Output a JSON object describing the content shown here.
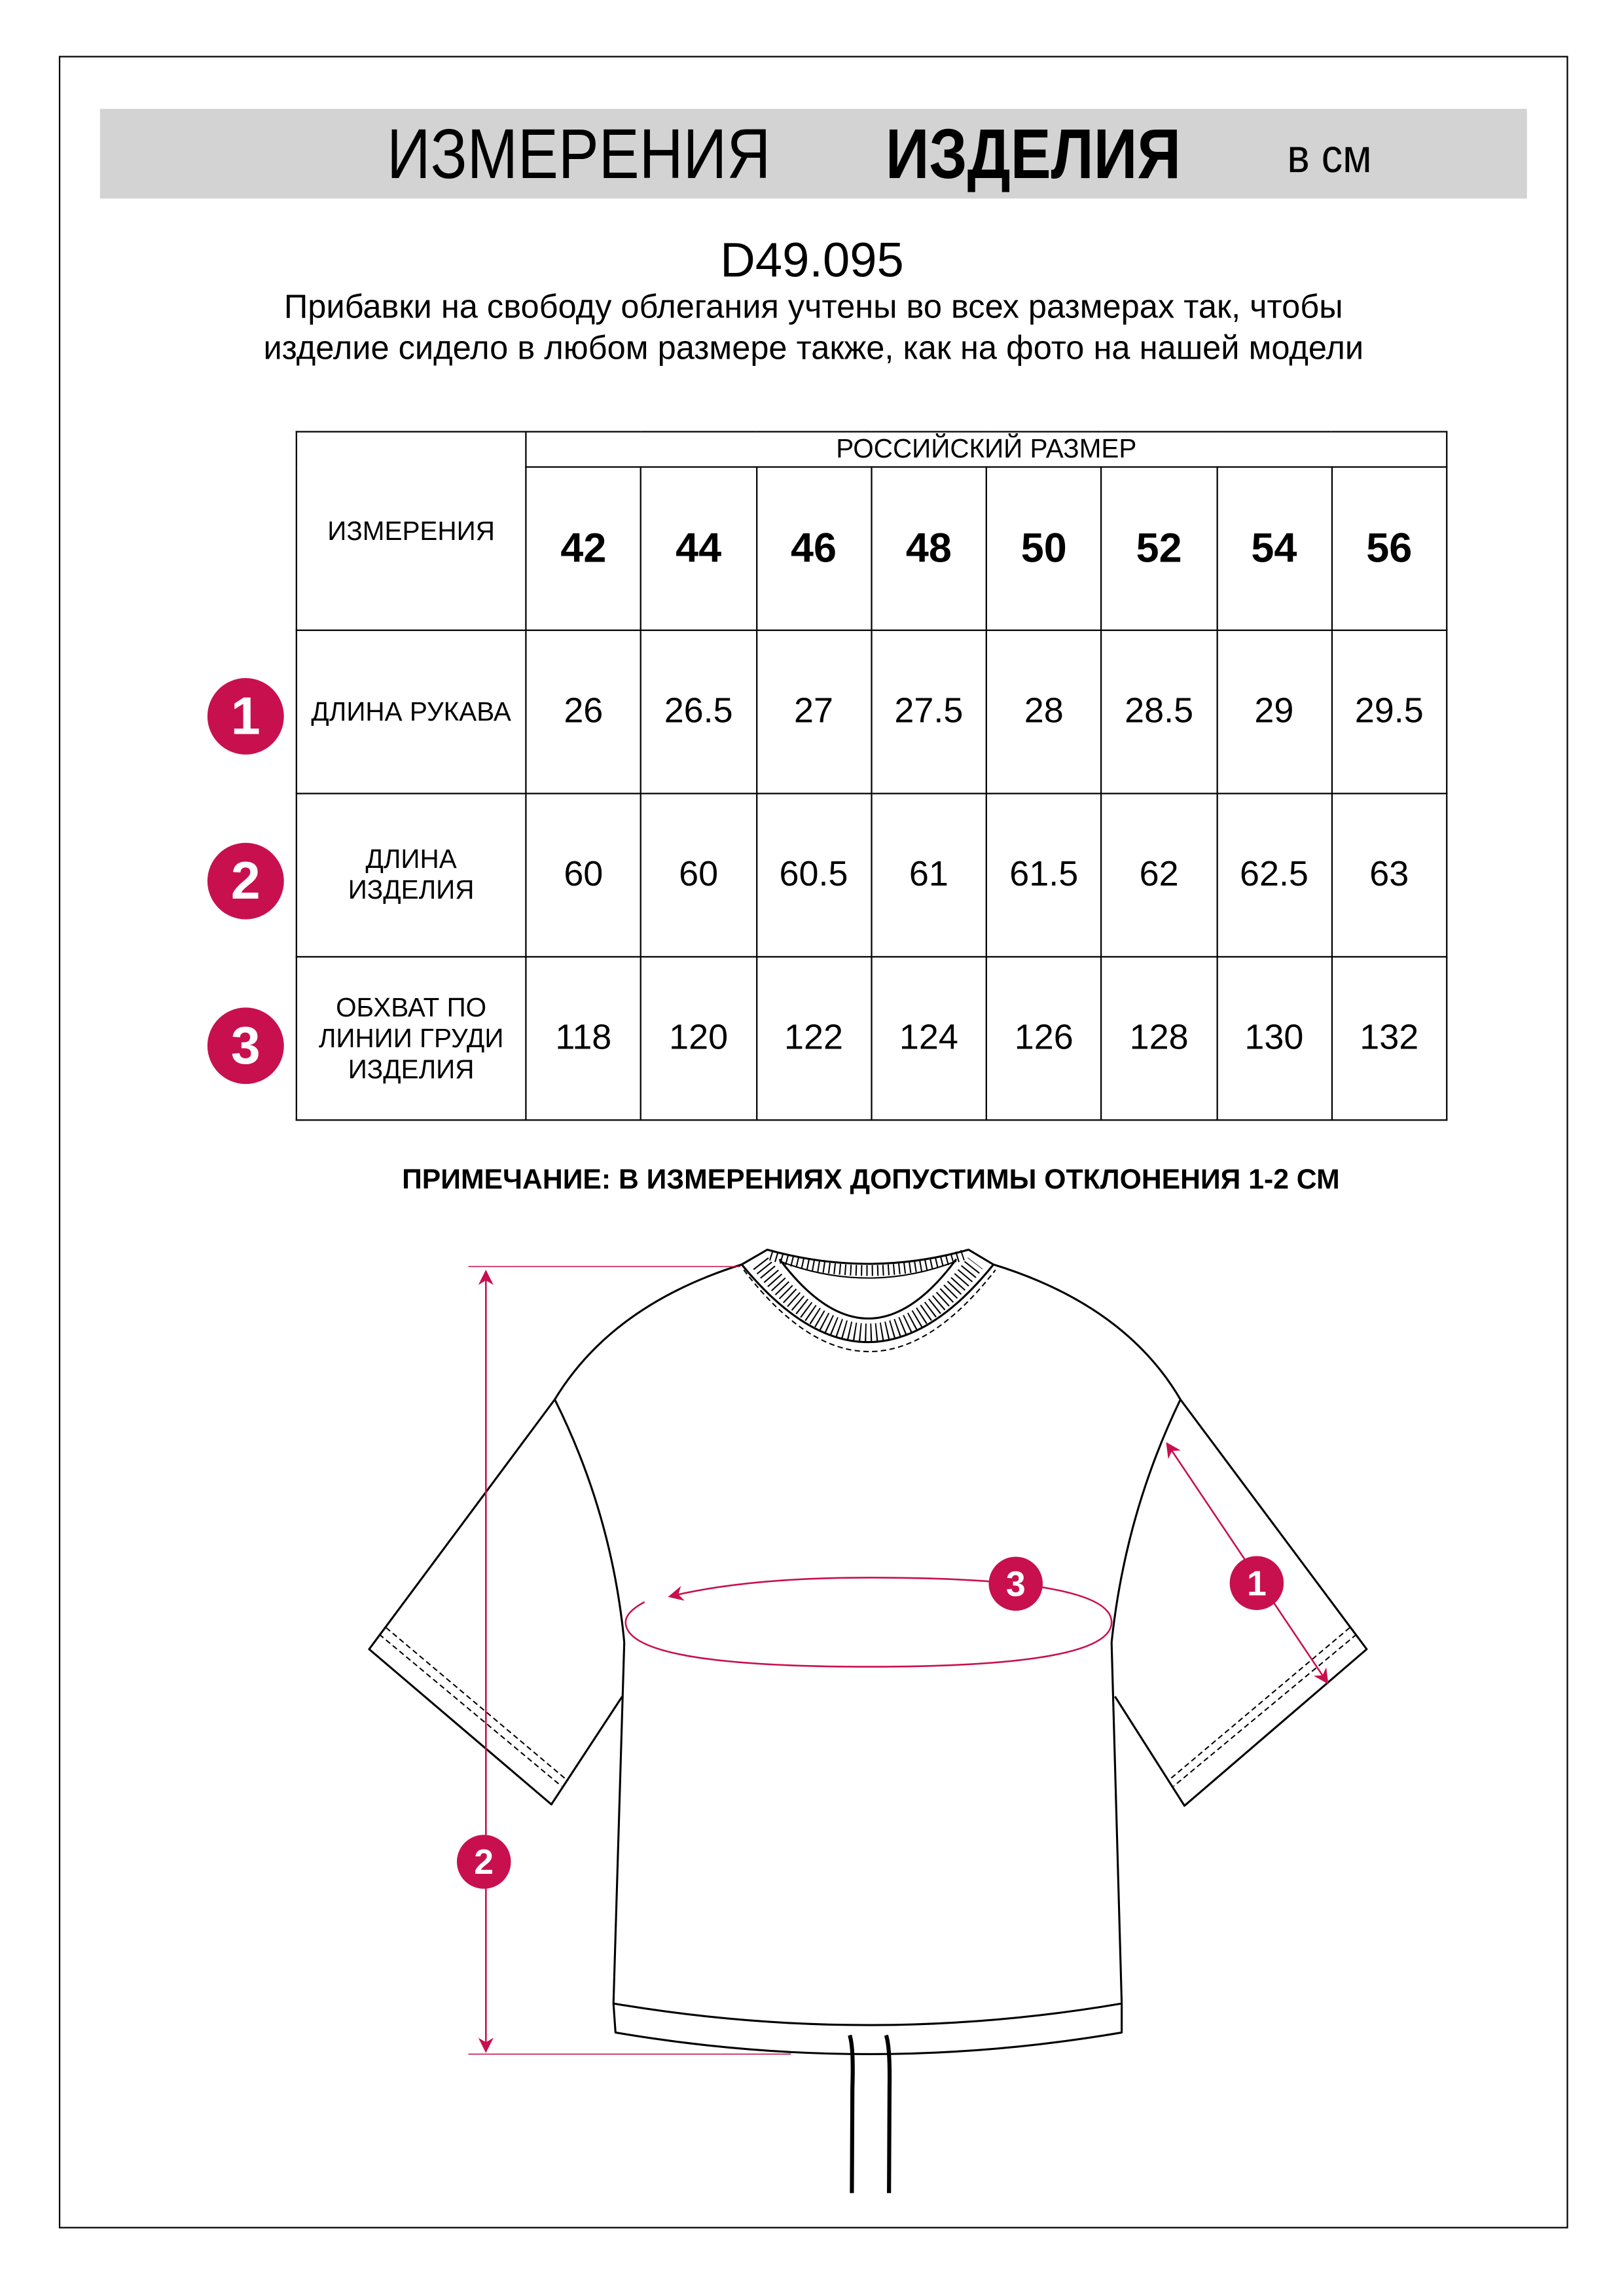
{
  "header": {
    "title_part1": "ИЗМЕРЕНИЯ",
    "title_part2": "ИЗДЕЛИЯ",
    "unit": "в см"
  },
  "product_code": "D49.095",
  "description": "Прибавки на свободу облегания учтены во всех размерах так, чтобы изделие сидело в любом размере также, как на фото на нашей модели",
  "table": {
    "corner_label": "ИЗМЕРЕНИЯ",
    "group_header": "РОССИЙСКИЙ РАЗМЕР",
    "sizes": [
      "42",
      "44",
      "46",
      "48",
      "50",
      "52",
      "54",
      "56"
    ],
    "rows": [
      {
        "marker": "1",
        "label": "ДЛИНА РУКАВА",
        "values": [
          "26",
          "26.5",
          "27",
          "27.5",
          "28",
          "28.5",
          "29",
          "29.5"
        ]
      },
      {
        "marker": "2",
        "label": "ДЛИНА ИЗДЕЛИЯ",
        "values": [
          "60",
          "60",
          "60.5",
          "61",
          "61.5",
          "62",
          "62.5",
          "63"
        ]
      },
      {
        "marker": "3",
        "label": "ОБХВАТ ПО ЛИНИИ ГРУДИ ИЗДЕЛИЯ",
        "values": [
          "118",
          "120",
          "122",
          "124",
          "126",
          "128",
          "130",
          "132"
        ]
      }
    ]
  },
  "note": "ПРИМЕЧАНИЕ: В ИЗМЕРЕНИЯХ ДОПУСТИМЫ ОТКЛОНЕНИЯ 1-2 СМ",
  "diagram": {
    "markers": [
      "1",
      "2",
      "3"
    ],
    "accent_color": "#c8104e",
    "header_bg": "#d3d3d3"
  }
}
